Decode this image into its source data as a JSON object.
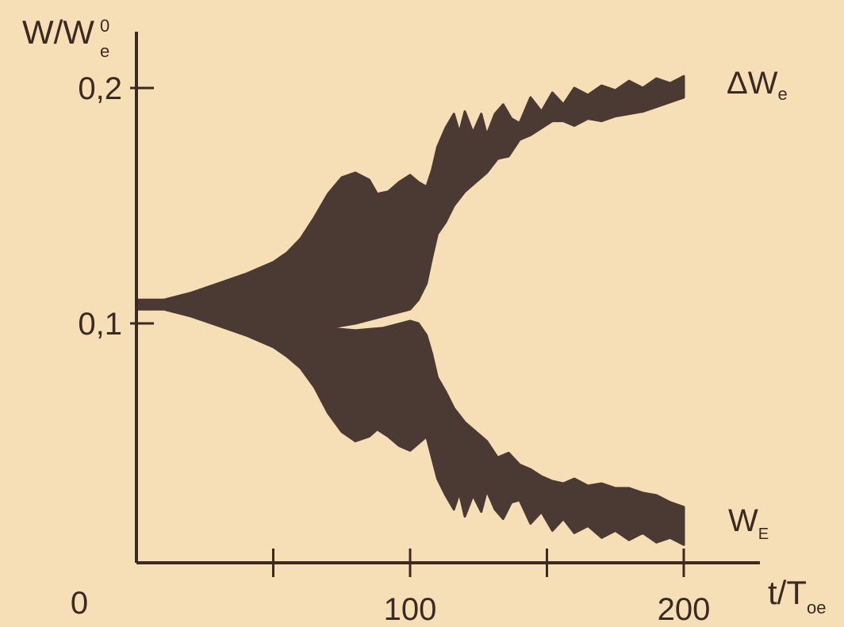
{
  "colors": {
    "background": "#f6dfb6",
    "ink": "#3a2a22",
    "band": "#4b3a33"
  },
  "chart_data": {
    "type": "area",
    "ylabel": {
      "main": "W/W",
      "sup": "0",
      "sub": "e"
    },
    "xlabel": {
      "main": "t/T",
      "sub": "oe"
    },
    "origin_label": "0",
    "xlim": [
      0,
      200
    ],
    "ylim_labels_range": [
      0.1,
      0.2
    ],
    "x_ticks": [
      {
        "value": 50,
        "label": ""
      },
      {
        "value": 100,
        "label": "100"
      },
      {
        "value": 150,
        "label": ""
      },
      {
        "value": 200,
        "label": "200"
      }
    ],
    "y_ticks": [
      {
        "value": 0.1,
        "label": "0,1"
      },
      {
        "value": 0.2,
        "label": "0,2"
      }
    ],
    "series": [
      {
        "label_main": "ΔW",
        "label_sub": "e",
        "upper_envelope": [
          [
            0,
            0.11
          ],
          [
            10,
            0.11
          ],
          [
            20,
            0.113
          ],
          [
            30,
            0.117
          ],
          [
            40,
            0.121
          ],
          [
            50,
            0.126
          ],
          [
            55,
            0.13
          ],
          [
            60,
            0.136
          ],
          [
            65,
            0.145
          ],
          [
            70,
            0.155
          ],
          [
            75,
            0.162
          ],
          [
            80,
            0.164
          ],
          [
            85,
            0.161
          ],
          [
            88,
            0.155
          ],
          [
            92,
            0.156
          ],
          [
            96,
            0.16
          ],
          [
            100,
            0.163
          ],
          [
            103,
            0.16
          ],
          [
            106,
            0.158
          ],
          [
            108,
            0.165
          ],
          [
            110,
            0.175
          ],
          [
            113,
            0.183
          ],
          [
            116,
            0.189
          ],
          [
            118,
            0.181
          ],
          [
            120,
            0.19
          ],
          [
            123,
            0.181
          ],
          [
            126,
            0.189
          ],
          [
            128,
            0.18
          ],
          [
            131,
            0.189
          ],
          [
            134,
            0.193
          ],
          [
            137,
            0.187
          ],
          [
            140,
            0.185
          ],
          [
            144,
            0.196
          ],
          [
            148,
            0.19
          ],
          [
            152,
            0.198
          ],
          [
            156,
            0.193
          ],
          [
            160,
            0.2
          ],
          [
            165,
            0.197
          ],
          [
            170,
            0.201
          ],
          [
            175,
            0.199
          ],
          [
            180,
            0.203
          ],
          [
            185,
            0.2
          ],
          [
            190,
            0.204
          ],
          [
            195,
            0.202
          ],
          [
            200,
            0.205
          ]
        ],
        "lower_envelope": [
          [
            0,
            0.108
          ],
          [
            10,
            0.108
          ],
          [
            20,
            0.107
          ],
          [
            30,
            0.105
          ],
          [
            40,
            0.103
          ],
          [
            50,
            0.101
          ],
          [
            60,
            0.099
          ],
          [
            70,
            0.098
          ],
          [
            80,
            0.1
          ],
          [
            90,
            0.103
          ],
          [
            100,
            0.106
          ],
          [
            103,
            0.11
          ],
          [
            106,
            0.117
          ],
          [
            108,
            0.128
          ],
          [
            110,
            0.138
          ],
          [
            113,
            0.143
          ],
          [
            116,
            0.15
          ],
          [
            120,
            0.156
          ],
          [
            124,
            0.16
          ],
          [
            128,
            0.164
          ],
          [
            132,
            0.17
          ],
          [
            136,
            0.171
          ],
          [
            140,
            0.178
          ],
          [
            144,
            0.18
          ],
          [
            148,
            0.183
          ],
          [
            152,
            0.186
          ],
          [
            156,
            0.186
          ],
          [
            160,
            0.184
          ],
          [
            165,
            0.187
          ],
          [
            170,
            0.186
          ],
          [
            175,
            0.188
          ],
          [
            180,
            0.189
          ],
          [
            185,
            0.19
          ],
          [
            190,
            0.192
          ],
          [
            195,
            0.194
          ],
          [
            200,
            0.196
          ]
        ]
      },
      {
        "label_main": "W",
        "label_sub": "E",
        "upper_envelope": [
          [
            0,
            0.108
          ],
          [
            10,
            0.108
          ],
          [
            20,
            0.107
          ],
          [
            30,
            0.105
          ],
          [
            40,
            0.103
          ],
          [
            50,
            0.101
          ],
          [
            60,
            0.099
          ],
          [
            70,
            0.098
          ],
          [
            80,
            0.097
          ],
          [
            90,
            0.098
          ],
          [
            100,
            0.101
          ],
          [
            103,
            0.1
          ],
          [
            106,
            0.095
          ],
          [
            108,
            0.087
          ],
          [
            110,
            0.077
          ],
          [
            113,
            0.071
          ],
          [
            116,
            0.064
          ],
          [
            120,
            0.058
          ],
          [
            124,
            0.054
          ],
          [
            128,
            0.05
          ],
          [
            132,
            0.043
          ],
          [
            136,
            0.045
          ],
          [
            140,
            0.04
          ],
          [
            144,
            0.038
          ],
          [
            148,
            0.035
          ],
          [
            152,
            0.033
          ],
          [
            156,
            0.032
          ],
          [
            160,
            0.034
          ],
          [
            165,
            0.031
          ],
          [
            170,
            0.032
          ],
          [
            175,
            0.03
          ],
          [
            180,
            0.03
          ],
          [
            185,
            0.028
          ],
          [
            190,
            0.027
          ],
          [
            195,
            0.024
          ],
          [
            200,
            0.022
          ]
        ],
        "lower_envelope": [
          [
            0,
            0.106
          ],
          [
            10,
            0.106
          ],
          [
            20,
            0.103
          ],
          [
            30,
            0.099
          ],
          [
            40,
            0.095
          ],
          [
            50,
            0.09
          ],
          [
            55,
            0.086
          ],
          [
            60,
            0.081
          ],
          [
            65,
            0.073
          ],
          [
            70,
            0.062
          ],
          [
            75,
            0.054
          ],
          [
            80,
            0.05
          ],
          [
            85,
            0.052
          ],
          [
            88,
            0.055
          ],
          [
            92,
            0.052
          ],
          [
            96,
            0.048
          ],
          [
            100,
            0.046
          ],
          [
            103,
            0.049
          ],
          [
            106,
            0.052
          ],
          [
            108,
            0.043
          ],
          [
            110,
            0.034
          ],
          [
            113,
            0.027
          ],
          [
            116,
            0.021
          ],
          [
            118,
            0.028
          ],
          [
            120,
            0.018
          ],
          [
            123,
            0.027
          ],
          [
            126,
            0.02
          ],
          [
            128,
            0.029
          ],
          [
            131,
            0.021
          ],
          [
            134,
            0.017
          ],
          [
            137,
            0.024
          ],
          [
            140,
            0.025
          ],
          [
            144,
            0.015
          ],
          [
            148,
            0.02
          ],
          [
            152,
            0.012
          ],
          [
            156,
            0.017
          ],
          [
            160,
            0.011
          ],
          [
            165,
            0.014
          ],
          [
            170,
            0.009
          ],
          [
            175,
            0.012
          ],
          [
            180,
            0.008
          ],
          [
            185,
            0.011
          ],
          [
            190,
            0.007
          ],
          [
            195,
            0.009
          ],
          [
            200,
            0.006
          ]
        ]
      }
    ]
  }
}
